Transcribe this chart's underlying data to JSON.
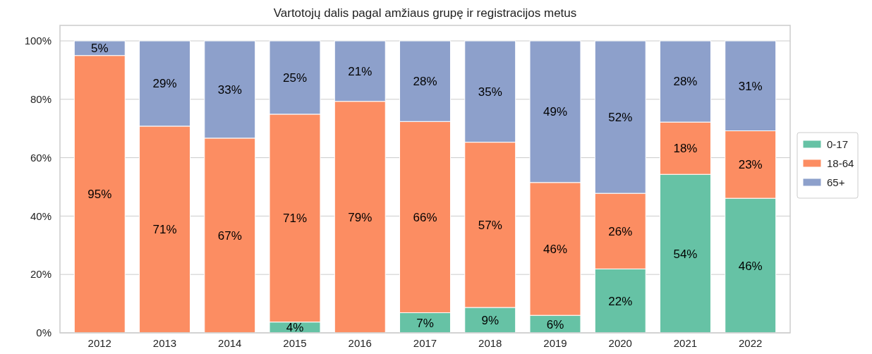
{
  "chart_data": {
    "type": "bar",
    "stacked": true,
    "title": "Vartotojų dalis pagal amžiaus grupę ir registracijos metus",
    "categories": [
      "2012",
      "2013",
      "2014",
      "2015",
      "2016",
      "2017",
      "2018",
      "2019",
      "2020",
      "2021",
      "2022"
    ],
    "series": [
      {
        "name": "0-17",
        "color": "#66c2a5",
        "values": [
          0,
          0,
          0,
          3.7,
          0,
          6.9,
          8.7,
          6.0,
          21.9,
          54.3,
          46.1
        ],
        "value_labels": [
          null,
          null,
          null,
          "4%",
          null,
          "7%",
          "9%",
          "6%",
          "22%",
          "54%",
          "46%"
        ]
      },
      {
        "name": "18-64",
        "color": "#fc8d62",
        "values": [
          95,
          70.8,
          66.7,
          71.2,
          79.3,
          65.5,
          56.6,
          45.5,
          25.9,
          17.9,
          23.1
        ],
        "value_labels": [
          "95%",
          "71%",
          "67%",
          "71%",
          "79%",
          "66%",
          "57%",
          "46%",
          "26%",
          "18%",
          "23%"
        ]
      },
      {
        "name": "65+",
        "color": "#8da0cb",
        "values": [
          5,
          29.2,
          33.3,
          25.1,
          20.7,
          27.6,
          34.7,
          48.5,
          52.2,
          27.8,
          30.8
        ],
        "value_labels": [
          "5%",
          "29%",
          "33%",
          "25%",
          "21%",
          "28%",
          "35%",
          "49%",
          "52%",
          "28%",
          "31%"
        ]
      }
    ],
    "ylim": [
      0,
      100
    ],
    "yticks": [
      {
        "value": 0,
        "label": "0%"
      },
      {
        "value": 20,
        "label": "20%"
      },
      {
        "value": 40,
        "label": "40%"
      },
      {
        "value": 60,
        "label": "60%"
      },
      {
        "value": 80,
        "label": "80%"
      },
      {
        "value": 100,
        "label": "100%"
      }
    ],
    "grid": "y",
    "legend": "right"
  }
}
